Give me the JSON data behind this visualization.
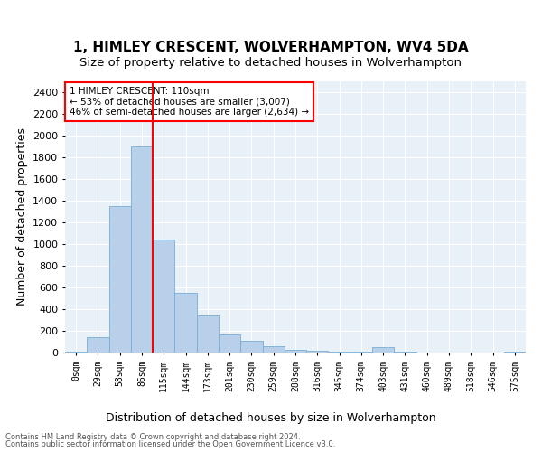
{
  "title": "1, HIMLEY CRESCENT, WOLVERHAMPTON, WV4 5DA",
  "subtitle": "Size of property relative to detached houses in Wolverhampton",
  "xlabel": "Distribution of detached houses by size in Wolverhampton",
  "ylabel": "Number of detached properties",
  "categories": [
    "0sqm",
    "29sqm",
    "58sqm",
    "86sqm",
    "115sqm",
    "144sqm",
    "173sqm",
    "201sqm",
    "230sqm",
    "259sqm",
    "288sqm",
    "316sqm",
    "345sqm",
    "374sqm",
    "403sqm",
    "431sqm",
    "460sqm",
    "489sqm",
    "518sqm",
    "546sqm",
    "575sqm"
  ],
  "values": [
    10,
    140,
    1350,
    1900,
    1040,
    550,
    340,
    170,
    110,
    60,
    25,
    15,
    10,
    5,
    50,
    5,
    2,
    2,
    2,
    2,
    5
  ],
  "bar_color": "#b8d0ea",
  "bar_edge_color": "#7aadd4",
  "vline_color": "red",
  "vline_x_index": 4,
  "annotation_text": "1 HIMLEY CRESCENT: 110sqm\n← 53% of detached houses are smaller (3,007)\n46% of semi-detached houses are larger (2,634) →",
  "annotation_box_color": "white",
  "annotation_box_edge_color": "red",
  "ylim": [
    0,
    2500
  ],
  "yticks": [
    0,
    200,
    400,
    600,
    800,
    1000,
    1200,
    1400,
    1600,
    1800,
    2000,
    2200,
    2400
  ],
  "title_fontsize": 11,
  "subtitle_fontsize": 9.5,
  "xlabel_fontsize": 9,
  "ylabel_fontsize": 9,
  "tick_fontsize": 8,
  "xtick_fontsize": 7,
  "footer1": "Contains HM Land Registry data © Crown copyright and database right 2024.",
  "footer2": "Contains public sector information licensed under the Open Government Licence v3.0.",
  "plot_bg_color": "#e8f0f8"
}
